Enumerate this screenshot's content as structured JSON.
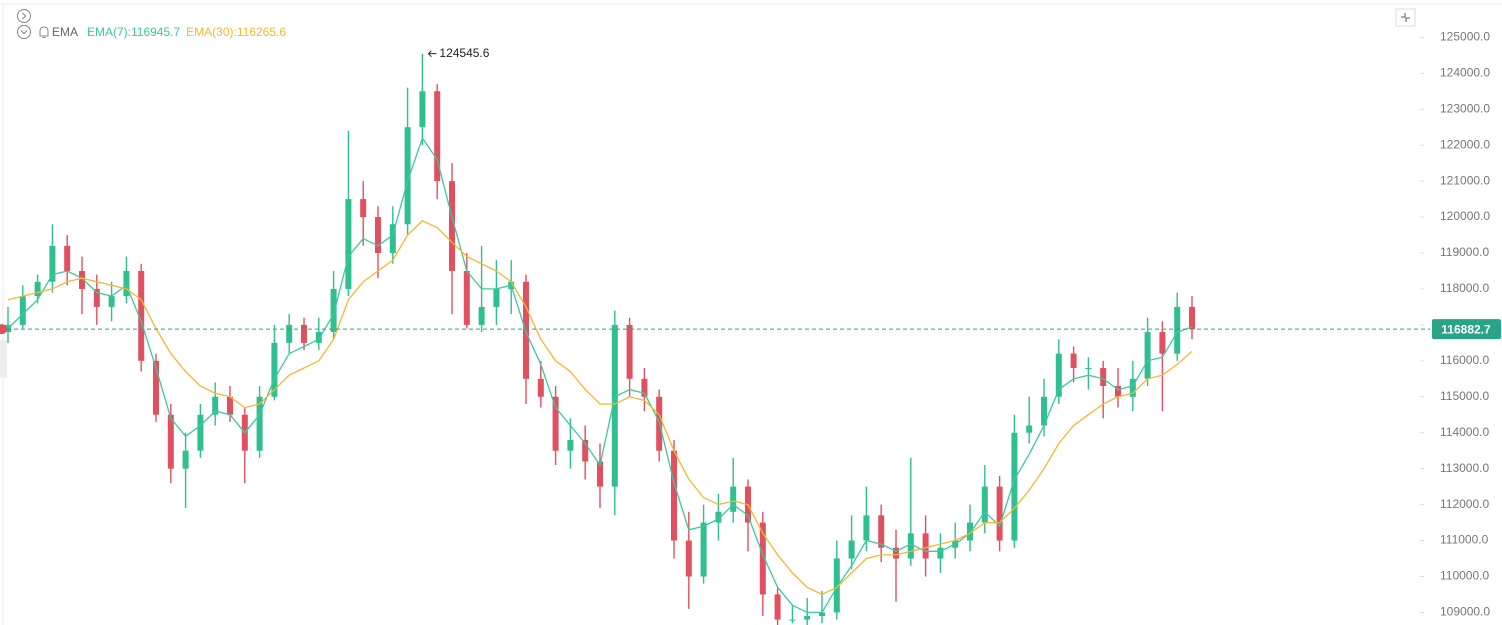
{
  "chart_data": {
    "type": "candlestick",
    "indicator": "EMA",
    "up_color": "#2fbf90",
    "down_color": "#e0505f",
    "high_label_index": 28,
    "open": [
      116800,
      117000,
      117800,
      118200,
      119200,
      118500,
      118000,
      117500,
      117800,
      118500,
      116000,
      114500,
      113000,
      113500,
      114500,
      115000,
      114500,
      113500,
      115000,
      116500,
      117000,
      116500,
      116800,
      118000,
      120500,
      120000,
      119000,
      119800,
      122500,
      123500,
      121000,
      118500,
      117000,
      117500,
      118000,
      118200,
      115500,
      115000,
      113500,
      113800,
      113200,
      112500,
      117000,
      115500,
      115000,
      113500,
      111000,
      110000,
      111500,
      111800,
      112500,
      111500,
      109500,
      108800,
      108800,
      108900,
      109000,
      110500,
      111000,
      111700,
      110800,
      110500,
      111200,
      110500,
      110800,
      111000,
      111500,
      112500,
      111000,
      114000,
      114200,
      115000,
      116200,
      115800,
      115800,
      115300,
      115000,
      115500,
      116800,
      116200,
      117500
    ],
    "high": [
      117500,
      118100,
      118400,
      119800,
      119500,
      118900,
      118400,
      118200,
      118900,
      118700,
      116200,
      114800,
      114000,
      114800,
      115400,
      115300,
      114700,
      115300,
      117000,
      117300,
      117200,
      117200,
      118500,
      122400,
      121000,
      120300,
      120300,
      123600,
      124545.6,
      123700,
      121500,
      119000,
      119200,
      118800,
      118800,
      118400,
      116000,
      115300,
      114400,
      114200,
      113700,
      117400,
      117200,
      115800,
      115200,
      113800,
      111800,
      112000,
      112300,
      113300,
      112700,
      111800,
      109700,
      109200,
      109400,
      109600,
      111000,
      111700,
      112500,
      112000,
      111300,
      113300,
      111700,
      111200,
      111500,
      112000,
      113100,
      112800,
      114500,
      115000,
      115500,
      116600,
      116400,
      116100,
      116000,
      115800,
      116000,
      117200,
      117100,
      117900,
      117800
    ],
    "low": [
      116500,
      116900,
      117600,
      117900,
      118100,
      117300,
      117000,
      117100,
      117600,
      115700,
      114300,
      112600,
      111900,
      113300,
      114200,
      114300,
      112600,
      113300,
      114900,
      116200,
      116300,
      116300,
      116600,
      117800,
      119200,
      118300,
      118700,
      119500,
      122000,
      120500,
      117300,
      116900,
      116800,
      117000,
      117300,
      114800,
      114700,
      113100,
      113000,
      112700,
      111900,
      111700,
      115000,
      114600,
      113200,
      110500,
      109100,
      109800,
      111000,
      111500,
      110700,
      108900,
      108600,
      108700,
      108600,
      108700,
      108800,
      110200,
      110700,
      110400,
      109300,
      110300,
      110000,
      110100,
      110500,
      110700,
      111200,
      110700,
      110800,
      113700,
      113900,
      114800,
      115400,
      115200,
      114400,
      114700,
      114600,
      115300,
      114600,
      116000,
      116600
    ],
    "close": [
      117000,
      117800,
      118200,
      119200,
      118500,
      118000,
      117500,
      117800,
      118500,
      116000,
      114500,
      113000,
      113500,
      114500,
      115000,
      114500,
      113500,
      115000,
      116500,
      117000,
      116500,
      116800,
      118000,
      120500,
      120000,
      119000,
      119800,
      122500,
      123500,
      121000,
      118500,
      117000,
      117500,
      118000,
      118200,
      115500,
      115000,
      113500,
      113800,
      113200,
      112500,
      117000,
      115500,
      115000,
      113500,
      111000,
      110000,
      111500,
      111800,
      112500,
      111500,
      109500,
      108800,
      108800,
      108900,
      109000,
      110500,
      111000,
      111700,
      110800,
      110500,
      111200,
      110500,
      110800,
      111000,
      111500,
      112500,
      111000,
      114000,
      114200,
      115000,
      116200,
      115800,
      115800,
      115300,
      115000,
      115500,
      116800,
      116200,
      117500,
      116882.7
    ],
    "series": [
      {
        "name": "EMA(7):116945.7",
        "color": "#3cc8a0",
        "values": [
          116900,
          117300,
          117700,
          118400,
          118500,
          118300,
          117900,
          117800,
          118100,
          117100,
          115800,
          114400,
          113900,
          114200,
          114600,
          114500,
          114000,
          114500,
          115500,
          116200,
          116400,
          116600,
          117300,
          118900,
          119400,
          119200,
          119500,
          121000,
          122200,
          121600,
          120000,
          118500,
          118000,
          118000,
          118100,
          116800,
          115900,
          114700,
          114200,
          113700,
          113100,
          115000,
          115200,
          115100,
          114300,
          112600,
          111300,
          111400,
          111600,
          112000,
          111700,
          110600,
          109700,
          109200,
          109000,
          109000,
          109700,
          110300,
          111000,
          110900,
          110700,
          110900,
          110700,
          110700,
          110900,
          111200,
          111800,
          111400,
          112700,
          113400,
          114200,
          115200,
          115500,
          115600,
          115500,
          115200,
          115300,
          116000,
          116100,
          116800,
          116945.7
        ]
      },
      {
        "name": "EMA(30):116265.6",
        "color": "#f5b731",
        "values": [
          117700,
          117800,
          117900,
          118000,
          118200,
          118300,
          118200,
          118100,
          118000,
          117700,
          116900,
          116200,
          115700,
          115300,
          115100,
          115000,
          114700,
          114800,
          115200,
          115600,
          115800,
          116000,
          116600,
          117700,
          118200,
          118500,
          118800,
          119500,
          119900,
          119700,
          119300,
          118900,
          118700,
          118500,
          118200,
          117500,
          116600,
          116000,
          115700,
          115200,
          114800,
          114800,
          115000,
          114900,
          114500,
          113500,
          112700,
          112200,
          112000,
          112100,
          112000,
          111200,
          110600,
          110100,
          109700,
          109500,
          109700,
          110100,
          110500,
          110600,
          110600,
          110700,
          110800,
          110900,
          111000,
          111200,
          111500,
          111500,
          111900,
          112400,
          113000,
          113700,
          114200,
          114500,
          114800,
          115000,
          115100,
          115500,
          115600,
          115900,
          116265.6
        ]
      }
    ],
    "ylim": [
      108650,
      125900
    ],
    "yticks": [
      {
        "value": 109000,
        "label": "109000.0"
      },
      {
        "value": 110000,
        "label": "110000.0"
      },
      {
        "value": 111000,
        "label": "111000.0"
      },
      {
        "value": 112000,
        "label": "112000.0"
      },
      {
        "value": 113000,
        "label": "113000.0"
      },
      {
        "value": 114000,
        "label": "114000.0"
      },
      {
        "value": 115000,
        "label": "115000.0"
      },
      {
        "value": 116000,
        "label": "116000.0"
      },
      {
        "value": 117000,
        "label": "117000.0"
      },
      {
        "value": 118000,
        "label": "118000.0"
      },
      {
        "value": 119000,
        "label": "119000.0"
      },
      {
        "value": 120000,
        "label": "120000.0"
      },
      {
        "value": 121000,
        "label": "121000.0"
      },
      {
        "value": 122000,
        "label": "122000.0"
      },
      {
        "value": 123000,
        "label": "123000.0"
      },
      {
        "value": 124000,
        "label": "124000.0"
      },
      {
        "value": 125000,
        "label": "125000.0"
      }
    ]
  }
}
